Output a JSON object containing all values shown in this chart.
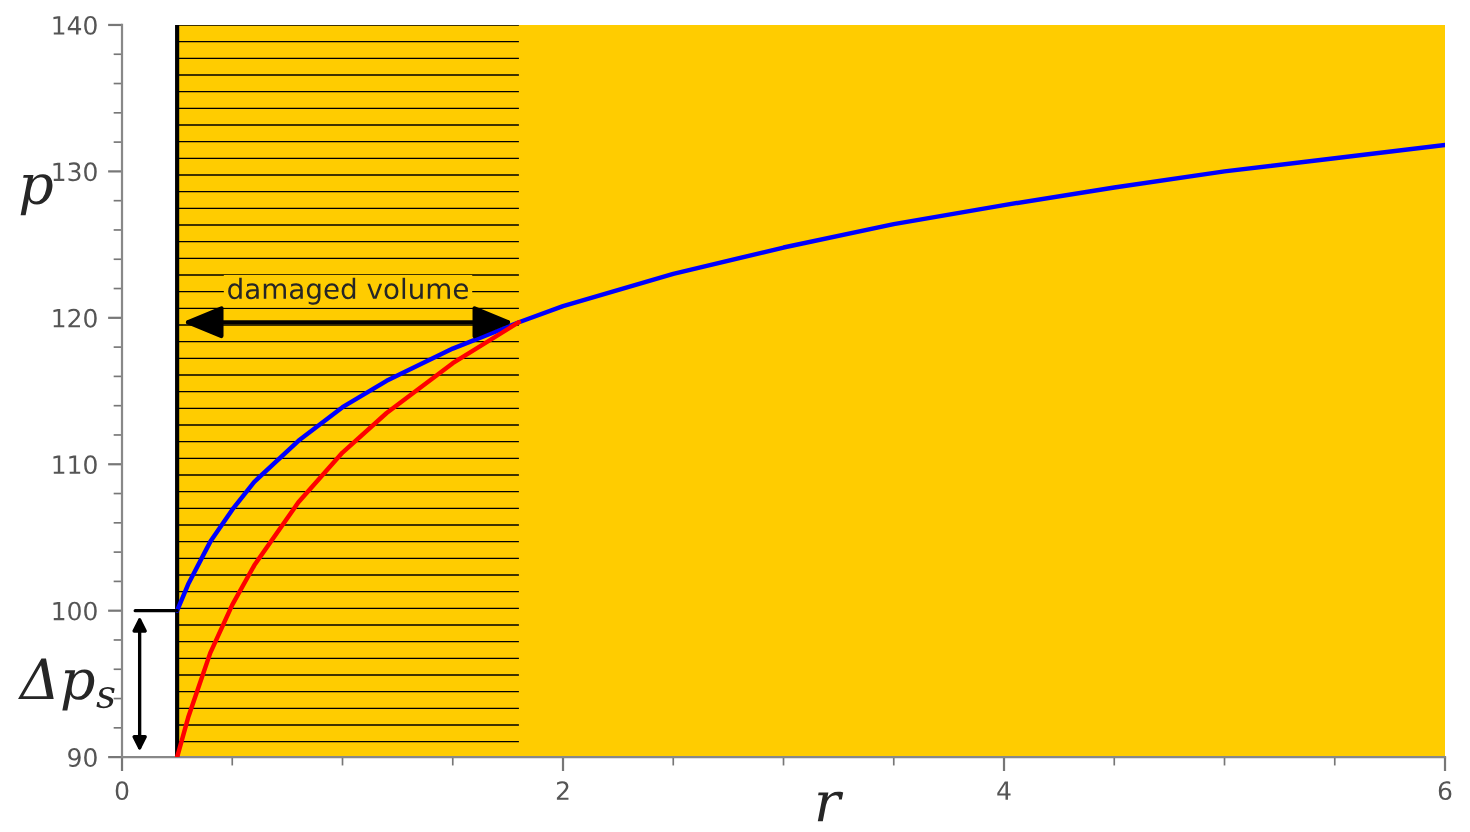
{
  "chart_data": {
    "type": "line",
    "xlabel": "r",
    "ylabel": "p",
    "series": [
      {
        "color": "#0000ff",
        "x": [
          0.25,
          0.3,
          0.4,
          0.5,
          0.6,
          0.8,
          1.0,
          1.2,
          1.5,
          1.8,
          2.0,
          2.5,
          3.0,
          3.5,
          4.0,
          4.5,
          5.0,
          5.5,
          6.0
        ],
        "values": [
          100,
          101.8,
          104.7,
          106.9,
          108.8,
          111.6,
          113.9,
          115.7,
          117.9,
          119.7,
          120.8,
          123.0,
          124.8,
          126.4,
          127.7,
          128.9,
          130.0,
          130.9,
          131.8
        ]
      },
      {
        "color": "#ff0000",
        "x": [
          0.25,
          0.3,
          0.4,
          0.5,
          0.6,
          0.8,
          1.0,
          1.2,
          1.5,
          1.8
        ],
        "values": [
          90,
          92.7,
          97.1,
          100.4,
          103.1,
          107.4,
          110.8,
          113.5,
          116.9,
          119.7
        ]
      }
    ],
    "xlim": [
      0,
      6
    ],
    "ylim": [
      90,
      140
    ],
    "xticks": [
      0,
      2,
      4,
      6
    ],
    "yticks": [
      90,
      100,
      110,
      120,
      130,
      140
    ],
    "bands": [
      {
        "axis": "x",
        "from": 0.25,
        "to": 6,
        "color": "#ffcc00"
      },
      {
        "axis": "x",
        "from": 0.25,
        "to": 1.8,
        "color": "#000000"
      }
    ],
    "ref_lines": [
      {
        "axis": "x",
        "value": 0.25,
        "color": "#000000"
      }
    ],
    "annotations": [
      "damaged volume",
      {
        "text": "Δp$_{s}$",
        "x": 0.25,
        "y": 100
      }
    ],
    "grid": false,
    "legend": false,
    "marker": "none",
    "line_style": "solid"
  }
}
